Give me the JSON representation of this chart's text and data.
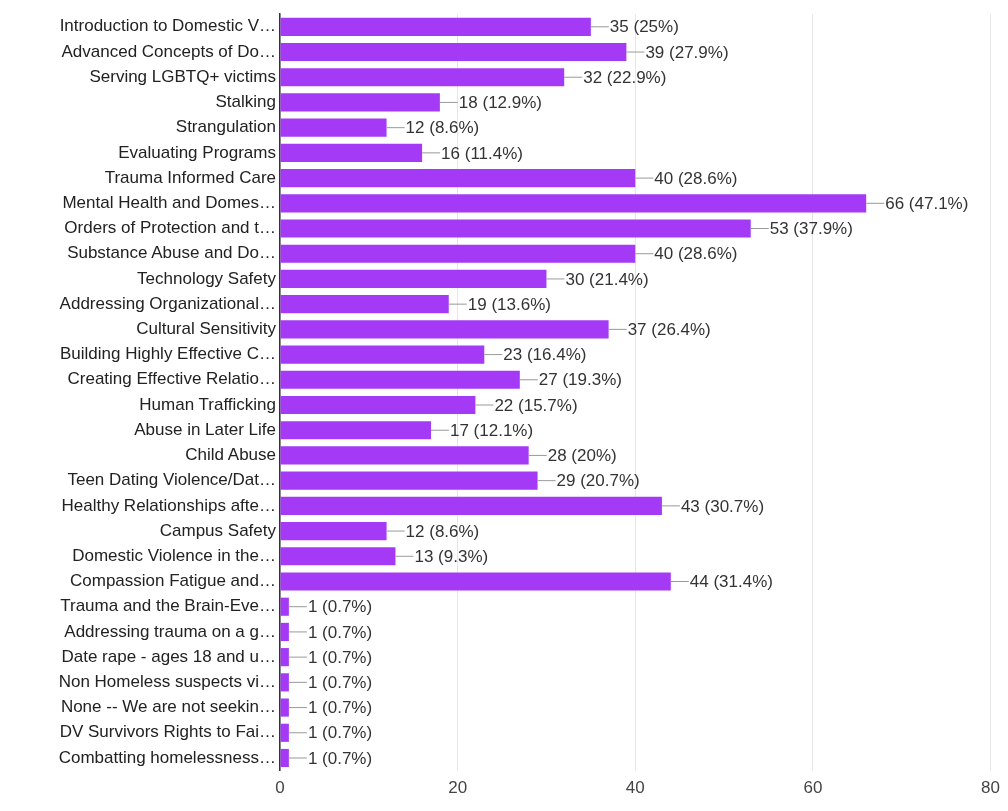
{
  "chart_data": {
    "type": "bar",
    "orientation": "horizontal",
    "categories": [
      "Introduction to Domestic V…",
      "Advanced Concepts of Do…",
      "Serving LGBTQ+ victims",
      "Stalking",
      "Strangulation",
      "Evaluating Programs",
      "Trauma Informed Care",
      "Mental Health and Domes…",
      "Orders of Protection and t…",
      "Substance Abuse and Do…",
      "Technology Safety",
      "Addressing Organizational…",
      "Cultural Sensitivity",
      "Building Highly Effective C…",
      "Creating Effective Relatio…",
      "Human Trafficking",
      "Abuse in Later Life",
      "Child Abuse",
      "Teen Dating Violence/Dat…",
      "Healthy Relationships afte…",
      "Campus Safety",
      "Domestic Violence in the…",
      "Compassion Fatigue and…",
      "Trauma and the Brain-Eve…",
      "Addressing trauma on a g…",
      "Date rape - ages 18 and u…",
      "Non Homeless suspects vi…",
      "None -- We are not seekin…",
      "DV Survivors Rights to Fai…",
      "Combatting homelessness…"
    ],
    "values": [
      35,
      39,
      32,
      18,
      12,
      16,
      40,
      66,
      53,
      40,
      30,
      19,
      37,
      23,
      27,
      22,
      17,
      28,
      29,
      43,
      12,
      13,
      44,
      1,
      1,
      1,
      1,
      1,
      1,
      1
    ],
    "value_labels": [
      "35 (25%)",
      "39 (27.9%)",
      "32 (22.9%)",
      "18 (12.9%)",
      "12 (8.6%)",
      "16 (11.4%)",
      "40 (28.6%)",
      "66 (47.1%)",
      "53 (37.9%)",
      "40 (28.6%)",
      "30 (21.4%)",
      "19 (13.6%)",
      "37 (26.4%)",
      "23 (16.4%)",
      "27 (19.3%)",
      "22 (15.7%)",
      "17 (12.1%)",
      "28 (20%)",
      "29 (20.7%)",
      "43 (30.7%)",
      "12 (8.6%)",
      "13 (9.3%)",
      "44 (31.4%)",
      "1 (0.7%)",
      "1 (0.7%)",
      "1 (0.7%)",
      "1 (0.7%)",
      "1 (0.7%)",
      "1 (0.7%)",
      "1 (0.7%)"
    ],
    "color": "#a43af5",
    "xlim": [
      0,
      80
    ],
    "xticks": [
      0,
      20,
      40,
      60,
      80
    ],
    "grid": "x",
    "legend": false
  }
}
